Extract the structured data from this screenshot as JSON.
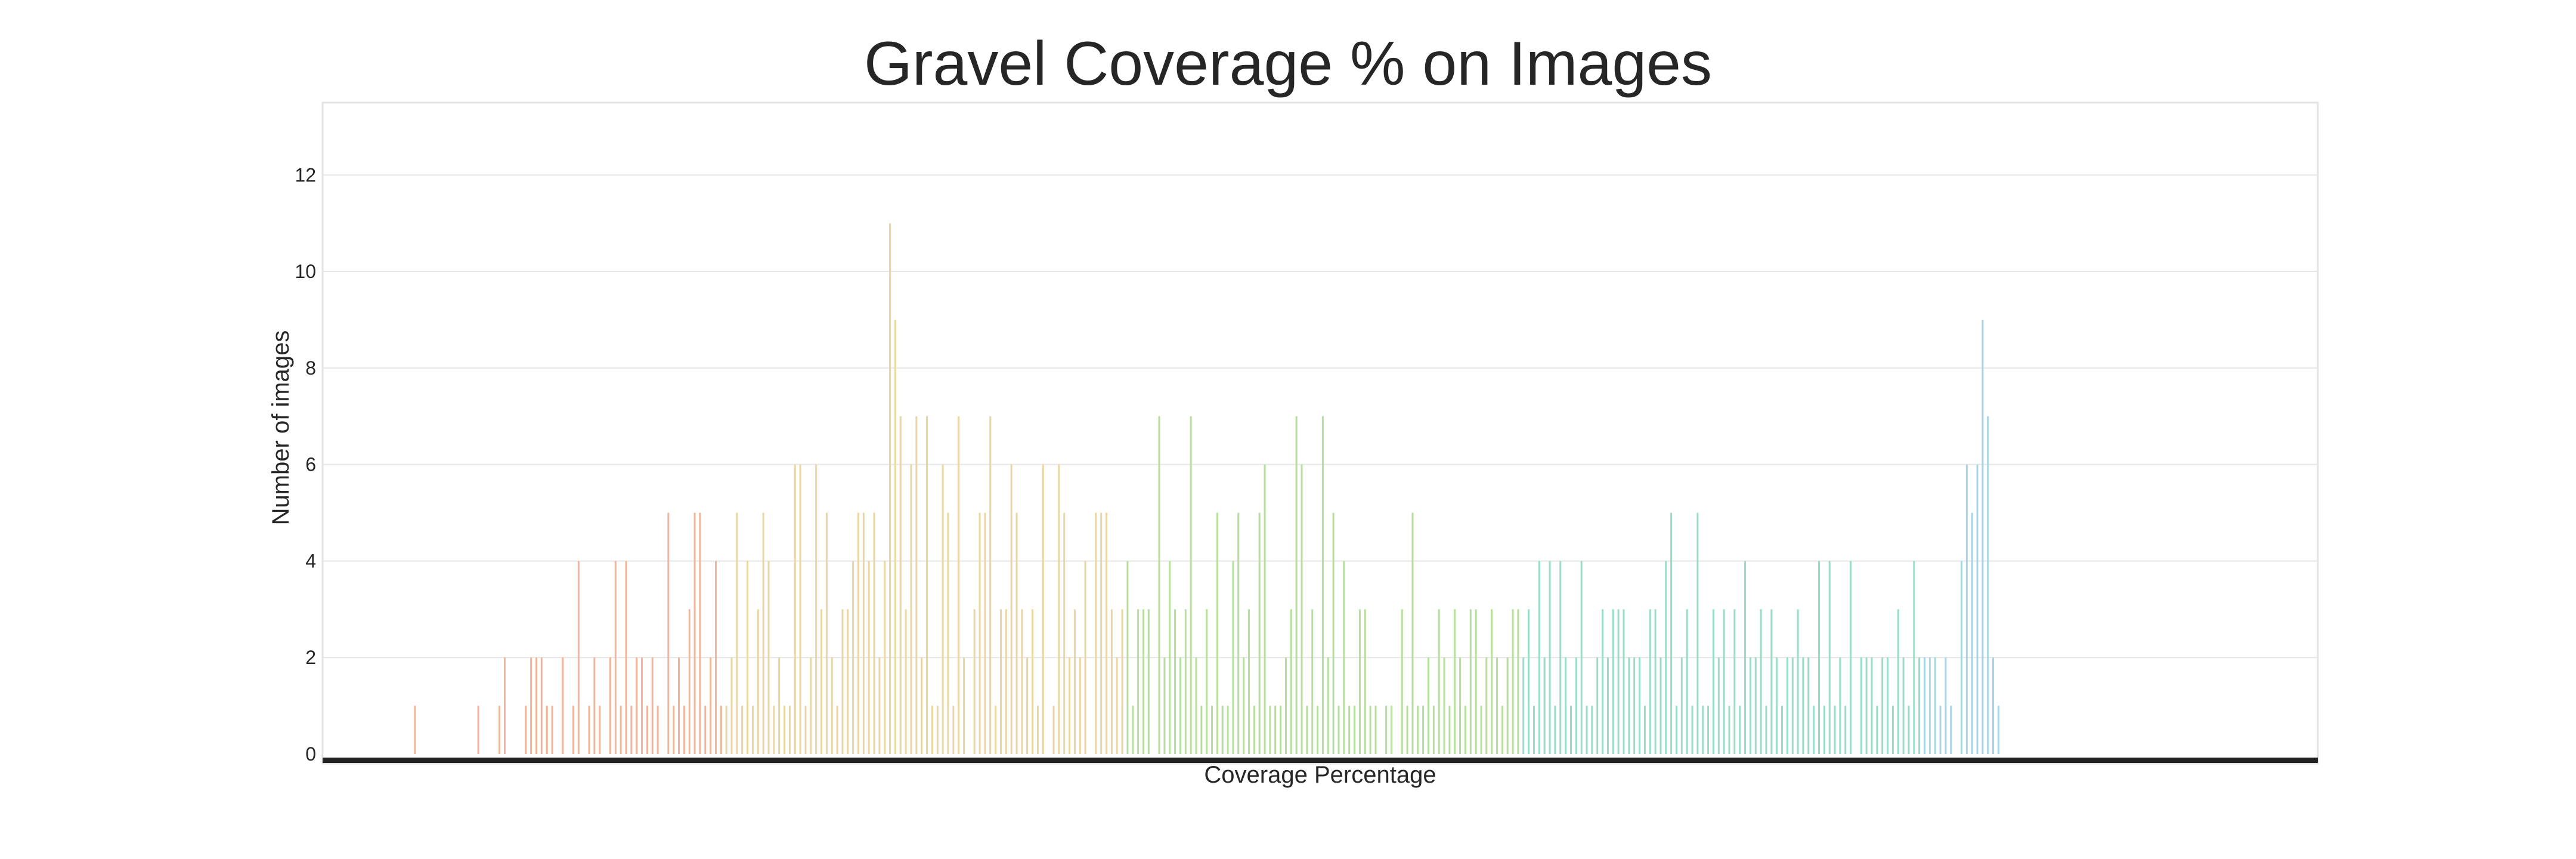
{
  "chart_data": {
    "type": "bar",
    "title": "Gravel Coverage % on Images",
    "xlabel": "Coverage Percentage",
    "ylabel": "Number of images",
    "ylim": [
      0,
      13.5
    ],
    "yticks": [
      0,
      2,
      4,
      6,
      8,
      10,
      12
    ],
    "grid": true,
    "x_tick_labels_visible": false,
    "palette": [
      "#f2b59a",
      "#ead6a2",
      "#b6de9c",
      "#99dcc7",
      "#a7d4e7"
    ],
    "categories_count": 334,
    "values": [
      0,
      0,
      0,
      0,
      0,
      0,
      0,
      0,
      0,
      0,
      0,
      0,
      0,
      0,
      0,
      0,
      0,
      1,
      0,
      0,
      0,
      0,
      0,
      0,
      0,
      0,
      0,
      0,
      0,
      1,
      0,
      0,
      0,
      1,
      2,
      0,
      0,
      0,
      1,
      2,
      2,
      2,
      1,
      1,
      0,
      2,
      0,
      1,
      4,
      0,
      1,
      2,
      1,
      0,
      2,
      4,
      1,
      4,
      1,
      2,
      2,
      1,
      2,
      1,
      0,
      5,
      1,
      2,
      1,
      3,
      5,
      5,
      1,
      2,
      4,
      1,
      1,
      2,
      5,
      1,
      4,
      1,
      3,
      5,
      4,
      1,
      2,
      1,
      1,
      6,
      6,
      1,
      2,
      6,
      3,
      5,
      2,
      1,
      3,
      3,
      4,
      5,
      5,
      4,
      5,
      2,
      4,
      11,
      9,
      7,
      3,
      6,
      7,
      2,
      7,
      1,
      1,
      6,
      5,
      1,
      7,
      2,
      0,
      3,
      5,
      5,
      7,
      1,
      3,
      3,
      6,
      5,
      3,
      2,
      3,
      1,
      6,
      0,
      1,
      6,
      5,
      2,
      3,
      2,
      4,
      0,
      5,
      5,
      5,
      3,
      2,
      3,
      4,
      1,
      3,
      3,
      3,
      0,
      7,
      2,
      4,
      3,
      2,
      3,
      7,
      2,
      1,
      3,
      1,
      5,
      1,
      1,
      4,
      5,
      2,
      3,
      1,
      5,
      6,
      1,
      1,
      1,
      2,
      3,
      7,
      6,
      1,
      3,
      1,
      7,
      2,
      5,
      1,
      4,
      1,
      1,
      3,
      3,
      1,
      1,
      0,
      1,
      1,
      0,
      3,
      1,
      5,
      1,
      1,
      2,
      1,
      3,
      2,
      1,
      3,
      2,
      1,
      3,
      3,
      1,
      2,
      3,
      2,
      1,
      2,
      3,
      3,
      2,
      3,
      1,
      4,
      2,
      4,
      1,
      4,
      2,
      1,
      2,
      4,
      1,
      1,
      2,
      3,
      2,
      3,
      3,
      3,
      2,
      2,
      2,
      1,
      3,
      3,
      2,
      4,
      5,
      1,
      2,
      3,
      1,
      5,
      1,
      1,
      3,
      2,
      3,
      1,
      3,
      1,
      4,
      2,
      2,
      3,
      1,
      3,
      2,
      1,
      2,
      2,
      3,
      2,
      2,
      1,
      4,
      1,
      4,
      1,
      2,
      1,
      4,
      0,
      2,
      2,
      2,
      1,
      2,
      2,
      1,
      3,
      2,
      1,
      4,
      2,
      2,
      2,
      2,
      1,
      2,
      1,
      0,
      4,
      6,
      5,
      6,
      9,
      7,
      2,
      1,
      0,
      0,
      0,
      0,
      0,
      0,
      0,
      0,
      0,
      0,
      0,
      0,
      0,
      0,
      0,
      0,
      0,
      0,
      0,
      0,
      0,
      0,
      0,
      0,
      0,
      0,
      0,
      0,
      0,
      0,
      0,
      0,
      0,
      0,
      0,
      0,
      0,
      0,
      0,
      0,
      0,
      0,
      0,
      0,
      0,
      0,
      0,
      0,
      0,
      0,
      0,
      0,
      0,
      0,
      0,
      0,
      0,
      0,
      0,
      0
    ]
  }
}
